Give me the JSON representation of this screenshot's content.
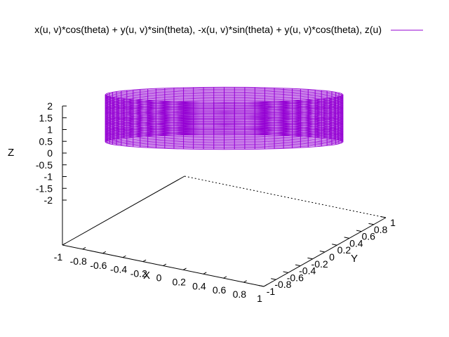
{
  "chart_data": {
    "type": "surface",
    "legend": {
      "label": "x(u, v)*cos(theta) + y(u, v)*sin(theta), -x(u, v)*sin(theta) + y(u, v)*cos(theta), z(u)",
      "placement": "top-right"
    },
    "series": [
      {
        "name": "x(u, v)*cos(theta) + y(u, v)*sin(theta), -x(u, v)*sin(theta) + y(u, v)*cos(theta), z(u)",
        "color": "#9400d3",
        "shape": "cylinder",
        "radius": 1,
        "z_range": [
          0,
          2
        ]
      }
    ],
    "xlabel": "X",
    "ylabel": "Y",
    "zlabel": "Z",
    "xlim": [
      -1,
      1
    ],
    "ylim": [
      -1,
      1
    ],
    "zlim": [
      -2,
      2
    ],
    "x_ticks": [
      "-1",
      "-0.8",
      "-0.6",
      "-0.4",
      "-0.2",
      "0",
      "0.2",
      "0.4",
      "0.6",
      "0.8",
      "1"
    ],
    "y_ticks": [
      "-1",
      "-0.8",
      "-0.6",
      "-0.4",
      "-0.2",
      "0",
      "0.2",
      "0.4",
      "0.6",
      "0.8",
      "1"
    ],
    "z_ticks": [
      "2",
      "1.5",
      "1",
      "0.5",
      "0",
      "-0.5",
      "-1",
      "-1.5",
      "-2"
    ],
    "grid": false,
    "colors": {
      "surface": "#9400d3",
      "axes": "#000000",
      "background": "#ffffff"
    }
  }
}
